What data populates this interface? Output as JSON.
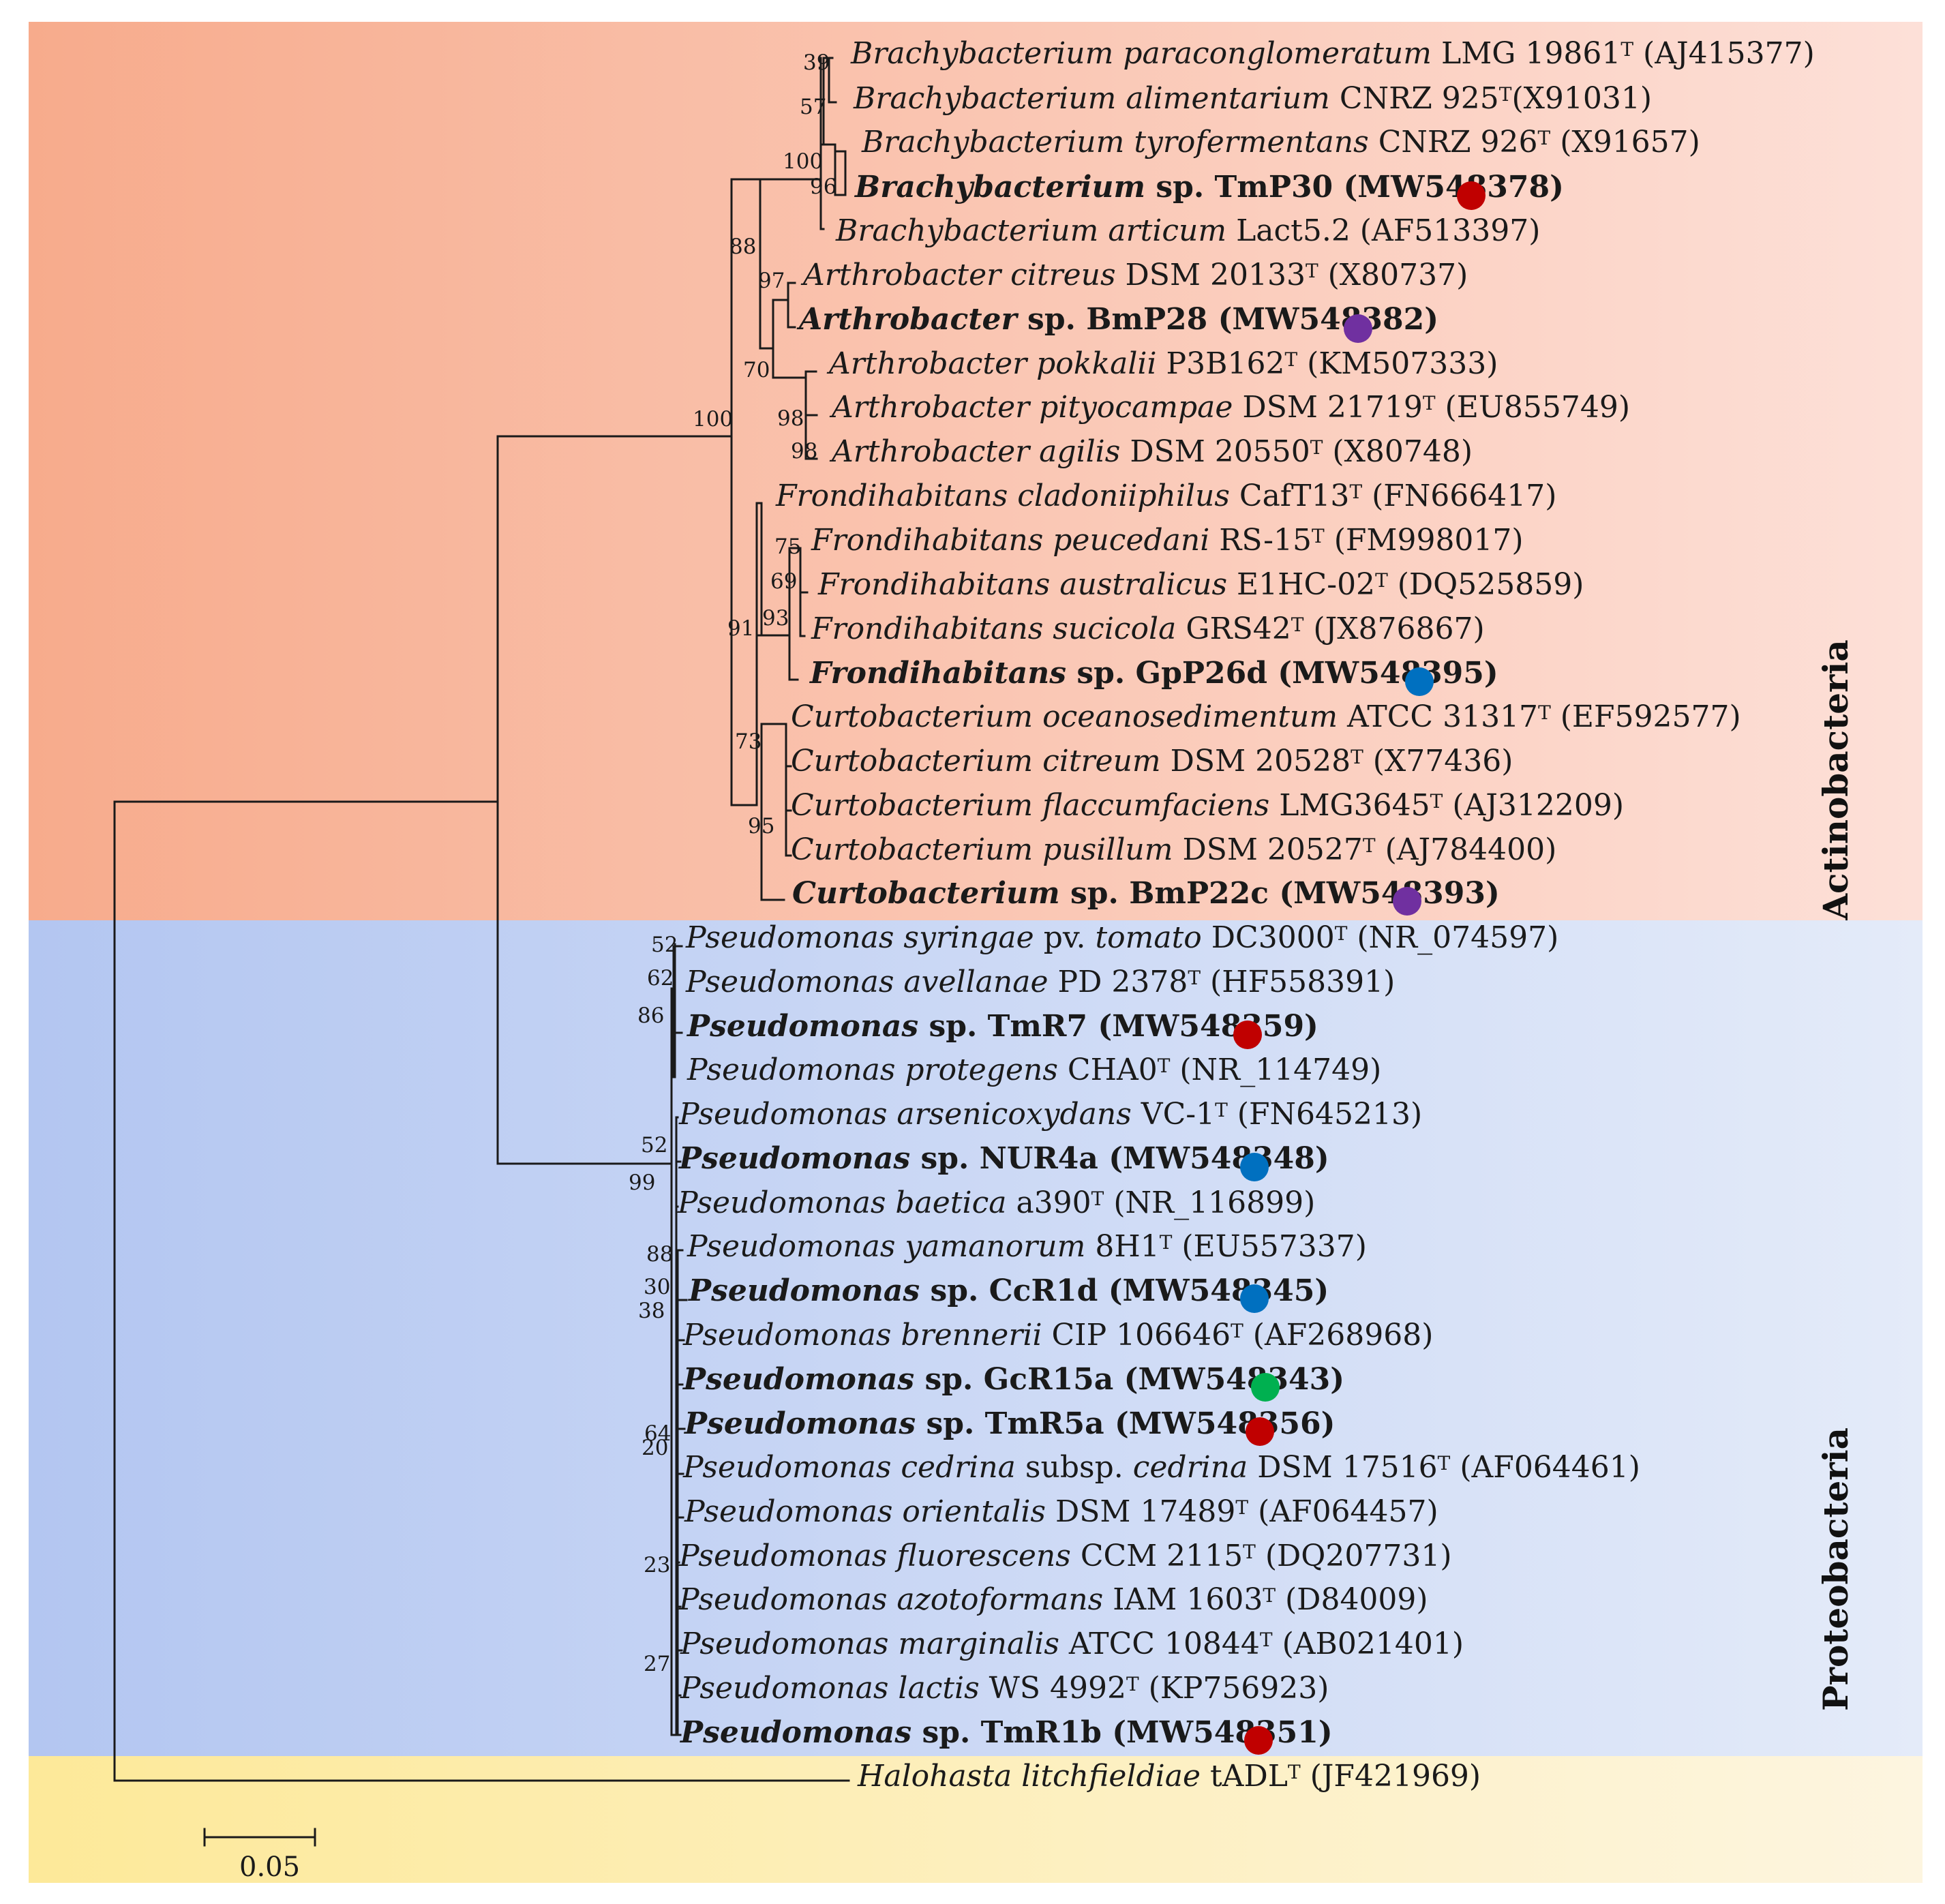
{
  "colors": {
    "red": "#c00000",
    "purple": "#7030a0",
    "blue": "#0070c0",
    "green": "#00b050"
  },
  "groups": {
    "actinobacteria": "Actinobacteria",
    "proteobacteria": "Proteobacteria"
  },
  "scale_bar": {
    "label": "0.05"
  },
  "taxa": [
    {
      "id": "t1",
      "parts": [
        {
          "t": "Brachybacterium paraconglomeratum",
          "i": true
        },
        {
          "t": " LMG 19861"
        },
        {
          "t": "T",
          "sup": true
        },
        {
          "t": " (AJ415377)"
        }
      ]
    },
    {
      "id": "t2",
      "parts": [
        {
          "t": "Brachybacterium alimentarium",
          "i": true
        },
        {
          "t": " CNRZ 925"
        },
        {
          "t": "T",
          "sup": true
        },
        {
          "t": "(X91031)"
        }
      ]
    },
    {
      "id": "t3",
      "parts": [
        {
          "t": "Brachybacterium tyrofermentans",
          "i": true
        },
        {
          "t": " CNRZ 926"
        },
        {
          "t": "T",
          "sup": true
        },
        {
          "t": " (X91657)"
        }
      ]
    },
    {
      "id": "t4",
      "bold": true,
      "dot": "red",
      "parts": [
        {
          "t": "Brachybacterium",
          "i": true
        },
        {
          "t": " sp. TmP30 (MW548378)"
        }
      ]
    },
    {
      "id": "t5",
      "parts": [
        {
          "t": "Brachybacterium articum",
          "i": true
        },
        {
          "t": " Lact5.2 (AF513397)"
        }
      ]
    },
    {
      "id": "t6",
      "parts": [
        {
          "t": "Arthrobacter citreus",
          "i": true
        },
        {
          "t": " DSM 20133"
        },
        {
          "t": "T",
          "sup": true
        },
        {
          "t": " (X80737)"
        }
      ]
    },
    {
      "id": "t7",
      "bold": true,
      "dot": "purple",
      "parts": [
        {
          "t": "Arthrobacter",
          "i": true
        },
        {
          "t": " sp. BmP28 (MW548382)"
        }
      ]
    },
    {
      "id": "t8",
      "parts": [
        {
          "t": "Arthrobacter pokkalii",
          "i": true
        },
        {
          "t": " P3B162"
        },
        {
          "t": "T",
          "sup": true
        },
        {
          "t": " (KM507333)"
        }
      ]
    },
    {
      "id": "t9",
      "parts": [
        {
          "t": "Arthrobacter pityocampae",
          "i": true
        },
        {
          "t": " DSM 21719"
        },
        {
          "t": "T",
          "sup": true
        },
        {
          "t": " (EU855749)"
        }
      ]
    },
    {
      "id": "t10",
      "parts": [
        {
          "t": "Arthrobacter agilis",
          "i": true
        },
        {
          "t": " DSM 20550"
        },
        {
          "t": "T",
          "sup": true
        },
        {
          "t": " (X80748)"
        }
      ]
    },
    {
      "id": "t11",
      "parts": [
        {
          "t": "Frondihabitans cladoniiphilus",
          "i": true
        },
        {
          "t": " CafT13"
        },
        {
          "t": "T",
          "sup": true
        },
        {
          "t": " (FN666417)"
        }
      ]
    },
    {
      "id": "t12",
      "parts": [
        {
          "t": "Frondihabitans peucedani",
          "i": true
        },
        {
          "t": " RS-15"
        },
        {
          "t": "T",
          "sup": true
        },
        {
          "t": " (FM998017)"
        }
      ]
    },
    {
      "id": "t13",
      "parts": [
        {
          "t": "Frondihabitans australicus",
          "i": true
        },
        {
          "t": " E1HC-02"
        },
        {
          "t": "T",
          "sup": true
        },
        {
          "t": " (DQ525859)"
        }
      ]
    },
    {
      "id": "t14",
      "parts": [
        {
          "t": "Frondihabitans sucicola",
          "i": true
        },
        {
          "t": " GRS42"
        },
        {
          "t": "T",
          "sup": true
        },
        {
          "t": " (JX876867)"
        }
      ]
    },
    {
      "id": "t15",
      "bold": true,
      "dot": "blue",
      "parts": [
        {
          "t": "Frondihabitans",
          "i": true
        },
        {
          "t": " sp. GpP26d (MW548395)"
        }
      ]
    },
    {
      "id": "t16",
      "parts": [
        {
          "t": "Curtobacterium oceanosedimentum",
          "i": true
        },
        {
          "t": " ATCC 31317"
        },
        {
          "t": "T",
          "sup": true
        },
        {
          "t": " (EF592577)"
        }
      ]
    },
    {
      "id": "t17",
      "parts": [
        {
          "t": "Curtobacterium citreum",
          "i": true
        },
        {
          "t": " DSM 20528"
        },
        {
          "t": "T",
          "sup": true
        },
        {
          "t": " (X77436)"
        }
      ]
    },
    {
      "id": "t18",
      "parts": [
        {
          "t": "Curtobacterium flaccumfaciens",
          "i": true
        },
        {
          "t": " LMG3645"
        },
        {
          "t": "T",
          "sup": true
        },
        {
          "t": " (AJ312209)"
        }
      ]
    },
    {
      "id": "t19",
      "parts": [
        {
          "t": "Curtobacterium pusillum",
          "i": true
        },
        {
          "t": " DSM 20527"
        },
        {
          "t": "T",
          "sup": true
        },
        {
          "t": " (AJ784400)"
        }
      ]
    },
    {
      "id": "t20",
      "bold": true,
      "dot": "purple",
      "parts": [
        {
          "t": "Curtobacterium",
          "i": true
        },
        {
          "t": " sp. BmP22c (MW548393)"
        }
      ]
    },
    {
      "id": "t21",
      "parts": [
        {
          "t": "Pseudomonas syringae",
          "i": true
        },
        {
          "t": " pv. "
        },
        {
          "t": "tomato",
          "i": true
        },
        {
          "t": " DC3000"
        },
        {
          "t": "T",
          "sup": true
        },
        {
          "t": " (NR_074597)"
        }
      ]
    },
    {
      "id": "t22",
      "parts": [
        {
          "t": "Pseudomonas avellanae",
          "i": true
        },
        {
          "t": " PD 2378"
        },
        {
          "t": "T",
          "sup": true
        },
        {
          "t": " (HF558391)"
        }
      ]
    },
    {
      "id": "t23",
      "bold": true,
      "dot": "red",
      "parts": [
        {
          "t": "Pseudomonas",
          "i": true
        },
        {
          "t": " sp. TmR7 (MW548359)"
        }
      ]
    },
    {
      "id": "t24",
      "parts": [
        {
          "t": "Pseudomonas protegens",
          "i": true
        },
        {
          "t": " CHA0"
        },
        {
          "t": "T",
          "sup": true
        },
        {
          "t": " (NR_114749)"
        }
      ]
    },
    {
      "id": "t25",
      "parts": [
        {
          "t": "Pseudomonas arsenicoxydans",
          "i": true
        },
        {
          "t": " VC-1"
        },
        {
          "t": "T",
          "sup": true
        },
        {
          "t": " (FN645213)"
        }
      ]
    },
    {
      "id": "t26",
      "bold": true,
      "dot": "blue",
      "parts": [
        {
          "t": "Pseudomonas",
          "i": true
        },
        {
          "t": " sp. NUR4a (MW548348)"
        }
      ]
    },
    {
      "id": "t27",
      "parts": [
        {
          "t": "Pseudomonas baetica",
          "i": true
        },
        {
          "t": " a390"
        },
        {
          "t": "T",
          "sup": true
        },
        {
          "t": " (NR_116899)"
        }
      ]
    },
    {
      "id": "t28",
      "parts": [
        {
          "t": "Pseudomonas yamanorum",
          "i": true
        },
        {
          "t": " 8H1"
        },
        {
          "t": "T",
          "sup": true
        },
        {
          "t": " (EU557337)"
        }
      ]
    },
    {
      "id": "t29",
      "bold": true,
      "dot": "blue",
      "parts": [
        {
          "t": "Pseudomonas",
          "i": true
        },
        {
          "t": " sp. CcR1d (MW548345)"
        }
      ]
    },
    {
      "id": "t30",
      "parts": [
        {
          "t": "Pseudomonas brennerii",
          "i": true
        },
        {
          "t": " CIP 106646"
        },
        {
          "t": "T",
          "sup": true
        },
        {
          "t": " (AF268968)"
        }
      ]
    },
    {
      "id": "t31",
      "bold": true,
      "dot": "green",
      "parts": [
        {
          "t": "Pseudomonas",
          "i": true
        },
        {
          "t": " sp. GcR15a (MW548343)"
        }
      ]
    },
    {
      "id": "t32",
      "bold": true,
      "dot": "red",
      "parts": [
        {
          "t": "Pseudomonas",
          "i": true
        },
        {
          "t": " sp. TmR5a (MW548356)"
        }
      ]
    },
    {
      "id": "t33",
      "parts": [
        {
          "t": "Pseudomonas cedrina",
          "i": true
        },
        {
          "t": " subsp. "
        },
        {
          "t": "cedrina",
          "i": true
        },
        {
          "t": " DSM 17516"
        },
        {
          "t": "T",
          "sup": true
        },
        {
          "t": " (AF064461)"
        }
      ]
    },
    {
      "id": "t34",
      "parts": [
        {
          "t": "Pseudomonas orientalis",
          "i": true
        },
        {
          "t": " DSM 17489"
        },
        {
          "t": "T",
          "sup": true
        },
        {
          "t": " (AF064457)"
        }
      ]
    },
    {
      "id": "t35",
      "parts": [
        {
          "t": "Pseudomonas fluorescens",
          "i": true
        },
        {
          "t": " CCM 2115"
        },
        {
          "t": "T",
          "sup": true
        },
        {
          "t": " (DQ207731)"
        }
      ]
    },
    {
      "id": "t36",
      "parts": [
        {
          "t": "Pseudomonas azotoformans",
          "i": true
        },
        {
          "t": " IAM 1603"
        },
        {
          "t": "T",
          "sup": true
        },
        {
          "t": " (D84009)"
        }
      ]
    },
    {
      "id": "t37",
      "parts": [
        {
          "t": "Pseudomonas marginalis",
          "i": true
        },
        {
          "t": " ATCC 10844"
        },
        {
          "t": "T",
          "sup": true
        },
        {
          "t": " (AB021401)"
        }
      ]
    },
    {
      "id": "t38",
      "parts": [
        {
          "t": "Pseudomonas lactis",
          "i": true
        },
        {
          "t": " WS 4992"
        },
        {
          "t": "T",
          "sup": true
        },
        {
          "t": " (KP756923)"
        }
      ]
    },
    {
      "id": "t39",
      "bold": true,
      "dot": "red",
      "parts": [
        {
          "t": "Pseudomonas",
          "i": true
        },
        {
          "t": " sp. TmR1b (MW548351)"
        }
      ]
    },
    {
      "id": "t40",
      "parts": [
        {
          "t": "Halohasta litchfieldiae",
          "i": true
        },
        {
          "t": " tADL"
        },
        {
          "t": "T",
          "sup": true
        },
        {
          "t": " (JF421969)"
        }
      ]
    }
  ],
  "bootstrap": [
    {
      "id": "b39",
      "v": "39"
    },
    {
      "id": "b57",
      "v": "57"
    },
    {
      "id": "b100a",
      "v": "100"
    },
    {
      "id": "b96",
      "v": "96"
    },
    {
      "id": "b88",
      "v": "88"
    },
    {
      "id": "b97",
      "v": "97"
    },
    {
      "id": "b70",
      "v": "70"
    },
    {
      "id": "b98a",
      "v": "98"
    },
    {
      "id": "b98b",
      "v": "98"
    },
    {
      "id": "b100b",
      "v": "100"
    },
    {
      "id": "b75",
      "v": "75"
    },
    {
      "id": "b69",
      "v": "69"
    },
    {
      "id": "b93",
      "v": "93"
    },
    {
      "id": "b91",
      "v": "91"
    },
    {
      "id": "b73",
      "v": "73"
    },
    {
      "id": "b95",
      "v": "95"
    },
    {
      "id": "b52a",
      "v": "52"
    },
    {
      "id": "b62",
      "v": "62"
    },
    {
      "id": "b86",
      "v": "86"
    },
    {
      "id": "b52b",
      "v": "52"
    },
    {
      "id": "b99",
      "v": "99"
    },
    {
      "id": "b88b",
      "v": "88"
    },
    {
      "id": "b30",
      "v": "30"
    },
    {
      "id": "b38",
      "v": "38"
    },
    {
      "id": "b64",
      "v": "64"
    },
    {
      "id": "b20",
      "v": "20"
    },
    {
      "id": "b23",
      "v": "23"
    },
    {
      "id": "b27",
      "v": "27"
    }
  ]
}
